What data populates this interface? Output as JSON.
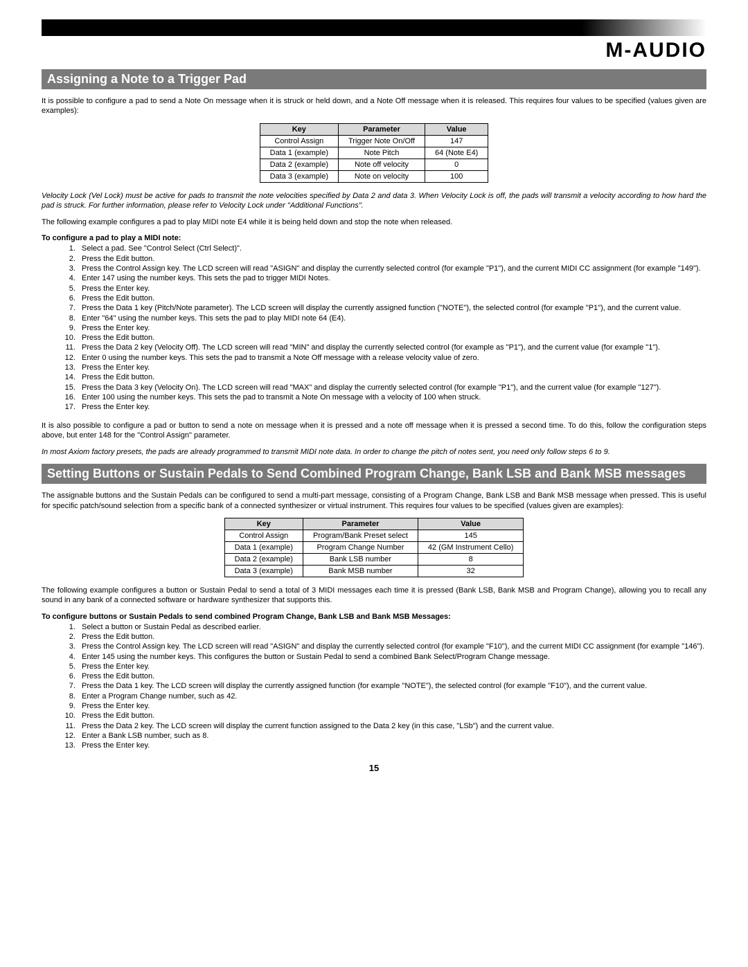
{
  "logo": "M-AUDIO",
  "section1": {
    "title": "Assigning a Note to a Trigger Pad",
    "intro": "It is possible to configure a pad to send a Note On message when it is struck or held down, and a Note Off message when it is released. This requires four values to be specified (values given are examples):",
    "table": {
      "headers": [
        "Key",
        "Parameter",
        "Value"
      ],
      "rows": [
        [
          "Control Assign",
          "Trigger Note On/Off",
          "147"
        ],
        [
          "Data 1 (example)",
          "Note Pitch",
          "64 (Note E4)"
        ],
        [
          "Data 2 (example)",
          "Note off velocity",
          "0"
        ],
        [
          "Data 3 (example)",
          "Note on velocity",
          "100"
        ]
      ]
    },
    "note1": "Velocity Lock (Vel Lock) must be active for pads to transmit the note velocities specified by Data 2 and data 3. When Velocity Lock is off, the pads will transmit a velocity according to how hard the pad is struck. For further information, please refer to Velocity Lock under \"Additional Functions\".",
    "para2": "The following example configures a pad to play MIDI note E4 while it is being held down and stop the note when released.",
    "instrHead": "To configure a pad to play a MIDI note:",
    "steps": [
      "Select a pad. See \"Control Select (Ctrl Select)\".",
      "Press the Edit button.",
      "Press the Control Assign key. The LCD screen will read \"ASIGN\" and display the currently selected control (for example \"P1\"), and the current MIDI CC assignment (for example \"149\").",
      "Enter 147 using the number keys. This sets the pad to trigger MIDI Notes.",
      "Press the Enter key.",
      "Press the Edit button.",
      "Press the Data 1 key (Pitch/Note parameter). The LCD screen will display the currently assigned function (\"NOTE\"), the selected control (for example \"P1\"), and the current value.",
      "Enter \"64\" using the number keys. This sets the pad to play MIDI note 64 (E4).",
      "Press the Enter key.",
      "Press the Edit button.",
      "Press the Data 2 key (Velocity Off). The LCD screen will read \"MIN\" and display the currently selected control (for example as \"P1\"), and the current value (for example \"1\").",
      "Enter 0 using the number keys. This sets the pad to transmit a Note Off message with a release velocity value of zero.",
      "Press the Enter key.",
      "Press the Edit button.",
      "Press the Data 3 key (Velocity On). The LCD screen will read \"MAX\" and display the currently selected control (for example \"P1\"), and the current value (for example \"127\").",
      "Enter 100 using the number keys. This sets the pad to transmit a Note On message with a velocity of 100 when struck.",
      "Press the Enter key."
    ],
    "after1": "It is also possible to configure a pad or button to send a note on message when it is pressed and a note off message when it is pressed a second time. To do this, follow the configuration steps above, but enter 148 for the \"Control Assign\" parameter.",
    "after2": "In most Axiom factory presets, the pads are already programmed to transmit MIDI note data. In order to change the pitch of notes sent, you need only follow steps 6 to 9."
  },
  "section2": {
    "title": "Setting Buttons or Sustain Pedals to Send Combined Program Change, Bank LSB and Bank MSB messages",
    "intro": "The assignable buttons and the Sustain Pedals can be configured to send a multi-part message, consisting of a Program Change, Bank LSB and Bank MSB message when pressed. This is useful for specific patch/sound selection from a specific bank of a connected synthesizer or virtual instrument. This requires four values to be specified (values given are examples):",
    "table": {
      "headers": [
        "Key",
        "Parameter",
        "Value"
      ],
      "rows": [
        [
          "Control Assign",
          "Program/Bank Preset select",
          "145"
        ],
        [
          "Data 1 (example)",
          "Program Change Number",
          "42 (GM Instrument Cello)"
        ],
        [
          "Data 2 (example)",
          "Bank LSB number",
          "8"
        ],
        [
          "Data 3 (example)",
          "Bank MSB number",
          "32"
        ]
      ]
    },
    "para2": "The following example configures a button or Sustain Pedal to send a total of 3 MIDI messages each time it is pressed (Bank LSB, Bank MSB and Program Change), allowing you to recall any sound in any bank of a connected software or hardware synthesizer that supports this.",
    "instrHead": "To configure buttons or Sustain Pedals to send combined Program Change, Bank LSB and Bank MSB Messages:",
    "steps": [
      "Select a button or Sustain Pedal as described earlier.",
      "Press the Edit button.",
      "Press the Control Assign key. The LCD screen will read \"ASIGN\" and display the currently selected control (for example \"F10\"), and the current MIDI CC assignment (for example \"146\").",
      "Enter 145 using the number keys. This configures the button or Sustain Pedal to send a combined Bank Select/Program Change message.",
      "Press the Enter key.",
      "Press the Edit button.",
      "Press the Data 1 key. The LCD screen will display the currently assigned function (for example \"NOTE\"), the selected control (for example \"F10\"), and the current value.",
      "Enter a Program Change number, such as 42.",
      "Press the Enter key.",
      "Press the Edit button.",
      "Press the Data 2 key. The LCD screen will display the current function assigned to the Data 2 key (in this case, \"LSb\") and the current value.",
      "Enter a Bank LSB number, such as 8.",
      "Press the Enter key."
    ]
  },
  "pageNumber": "15"
}
